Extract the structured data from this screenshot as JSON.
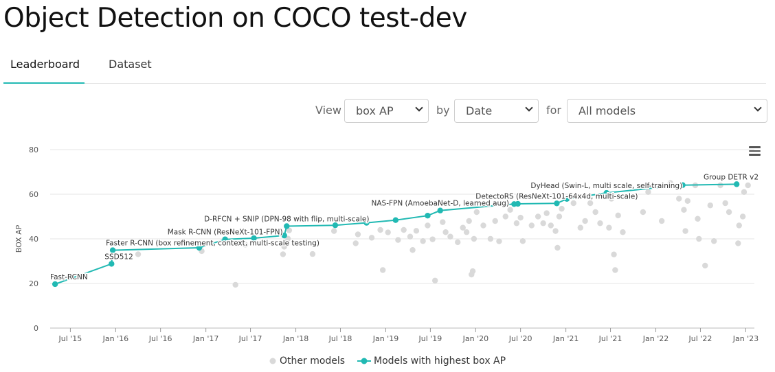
{
  "page": {
    "title": "Object Detection on COCO test-dev"
  },
  "tabs": [
    {
      "label": "Leaderboard",
      "active": true
    },
    {
      "label": "Dataset",
      "active": false
    }
  ],
  "controls": {
    "view_label": "View",
    "view_value": "box AP",
    "by_label": "by",
    "by_value": "Date",
    "for_label": "for",
    "for_value": "All models"
  },
  "colors": {
    "accent": "#21b9b3",
    "other": "#d9d9d9",
    "grid": "#e6e6e6"
  },
  "legend": {
    "other_label": "Other models",
    "best_label": "Models with highest box AP"
  },
  "chart_data": {
    "type": "scatter",
    "ylabel": "BOX AP",
    "xlabel": "",
    "ylim": [
      0,
      80
    ],
    "yticks": [
      0,
      20,
      40,
      60,
      80
    ],
    "xlim": [
      "2015-04-10",
      "2023-02-05"
    ],
    "xticks": [
      {
        "date": "2015-07-01",
        "label": "Jul '15"
      },
      {
        "date": "2016-01-01",
        "label": "Jan '16"
      },
      {
        "date": "2016-07-01",
        "label": "Jul '16"
      },
      {
        "date": "2017-01-01",
        "label": "Jan '17"
      },
      {
        "date": "2017-07-01",
        "label": "Jul '17"
      },
      {
        "date": "2018-01-01",
        "label": "Jan '18"
      },
      {
        "date": "2018-07-01",
        "label": "Jul '18"
      },
      {
        "date": "2019-01-01",
        "label": "Jan '19"
      },
      {
        "date": "2019-07-01",
        "label": "Jul '19"
      },
      {
        "date": "2020-01-01",
        "label": "Jan '20"
      },
      {
        "date": "2020-07-01",
        "label": "Jul '20"
      },
      {
        "date": "2021-01-01",
        "label": "Jan '21"
      },
      {
        "date": "2021-07-01",
        "label": "Jul '21"
      },
      {
        "date": "2022-01-01",
        "label": "Jan '22"
      },
      {
        "date": "2022-07-01",
        "label": "Jul '22"
      },
      {
        "date": "2023-01-01",
        "label": "Jan '23"
      }
    ],
    "grid": true,
    "legend_position": "bottom",
    "series": [
      {
        "name": "Models with highest box AP",
        "points": [
          {
            "date": "2015-04-30",
            "y": 19.7,
            "label": "Fast-RCNN"
          },
          {
            "date": "2015-12-15",
            "y": 28.8,
            "label": "SSD512"
          },
          {
            "date": "2015-12-20",
            "y": 34.9,
            "label": "Faster R-CNN (box refinement, context, multi-scale testing)"
          },
          {
            "date": "2016-12-05",
            "y": 36.0,
            "label": ""
          },
          {
            "date": "2017-03-20",
            "y": 39.8,
            "label": "Mask R-CNN (ResNeXt-101-FPN)"
          },
          {
            "date": "2017-07-15",
            "y": 40.3,
            "label": ""
          },
          {
            "date": "2017-11-15",
            "y": 41.5,
            "label": ""
          },
          {
            "date": "2017-11-25",
            "y": 45.7,
            "label": "D-RFCN + SNIP (DPN-98 with flip, multi-scale)"
          },
          {
            "date": "2018-06-10",
            "y": 46.1,
            "label": ""
          },
          {
            "date": "2018-10-15",
            "y": 47.2,
            "label": ""
          },
          {
            "date": "2019-02-10",
            "y": 48.4,
            "label": ""
          },
          {
            "date": "2019-06-20",
            "y": 50.4,
            "label": ""
          },
          {
            "date": "2019-08-10",
            "y": 52.7,
            "label": "NAS-FPN (AmoebaNet-D, learned aug)"
          },
          {
            "date": "2020-06-05",
            "y": 55.6,
            "label": ""
          },
          {
            "date": "2020-06-20",
            "y": 55.7,
            "label": ""
          },
          {
            "date": "2020-11-25",
            "y": 55.9,
            "label": "DetectoRS (ResNeXt-101-64x4d, multi-scale)"
          },
          {
            "date": "2021-01-05",
            "y": 57.9,
            "label": ""
          },
          {
            "date": "2021-06-15",
            "y": 60.6,
            "label": "DyHead (Swin-L, multi scale, self-training)"
          },
          {
            "date": "2022-04-20",
            "y": 64.1,
            "label": ""
          },
          {
            "date": "2022-11-25",
            "y": 64.5,
            "label": "Group DETR v2"
          }
        ]
      },
      {
        "name": "Other models",
        "points": [
          {
            "date": "2016-04-01",
            "y": 33.1
          },
          {
            "date": "2016-12-15",
            "y": 34.5
          },
          {
            "date": "2017-05-01",
            "y": 19.4
          },
          {
            "date": "2017-05-20",
            "y": 38.0
          },
          {
            "date": "2017-06-10",
            "y": 37.4
          },
          {
            "date": "2017-11-10",
            "y": 33.1
          },
          {
            "date": "2017-11-15",
            "y": 36.5
          },
          {
            "date": "2017-11-20",
            "y": 38.8
          },
          {
            "date": "2017-11-30",
            "y": 40.1
          },
          {
            "date": "2017-12-05",
            "y": 43.8
          },
          {
            "date": "2018-03-10",
            "y": 33.2
          },
          {
            "date": "2018-06-05",
            "y": 43.5
          },
          {
            "date": "2018-09-01",
            "y": 38.0
          },
          {
            "date": "2018-09-10",
            "y": 42.0
          },
          {
            "date": "2018-11-05",
            "y": 40.5
          },
          {
            "date": "2018-12-20",
            "y": 26.0
          },
          {
            "date": "2018-12-10",
            "y": 44.0
          },
          {
            "date": "2019-01-10",
            "y": 42.9
          },
          {
            "date": "2019-02-20",
            "y": 39.5
          },
          {
            "date": "2019-03-15",
            "y": 44.0
          },
          {
            "date": "2019-04-10",
            "y": 41.0
          },
          {
            "date": "2019-04-20",
            "y": 35.0
          },
          {
            "date": "2019-05-05",
            "y": 43.6
          },
          {
            "date": "2019-06-01",
            "y": 39.0
          },
          {
            "date": "2019-06-20",
            "y": 46.0
          },
          {
            "date": "2019-07-10",
            "y": 39.8
          },
          {
            "date": "2019-07-20",
            "y": 21.3
          },
          {
            "date": "2019-08-20",
            "y": 47.5
          },
          {
            "date": "2019-09-01",
            "y": 43.0
          },
          {
            "date": "2019-09-20",
            "y": 41.0
          },
          {
            "date": "2019-10-20",
            "y": 38.5
          },
          {
            "date": "2019-11-10",
            "y": 45.0
          },
          {
            "date": "2019-11-25",
            "y": 43.0
          },
          {
            "date": "2019-12-05",
            "y": 48.0
          },
          {
            "date": "2019-12-15",
            "y": 24.0
          },
          {
            "date": "2019-12-20",
            "y": 25.5
          },
          {
            "date": "2019-12-25",
            "y": 40.0
          },
          {
            "date": "2020-01-05",
            "y": 52.0
          },
          {
            "date": "2020-02-01",
            "y": 46.0
          },
          {
            "date": "2020-03-01",
            "y": 40.0
          },
          {
            "date": "2020-03-20",
            "y": 48.0
          },
          {
            "date": "2020-04-05",
            "y": 38.9
          },
          {
            "date": "2020-05-01",
            "y": 50.0
          },
          {
            "date": "2020-05-20",
            "y": 53.0
          },
          {
            "date": "2020-06-15",
            "y": 47.0
          },
          {
            "date": "2020-07-01",
            "y": 49.5
          },
          {
            "date": "2020-07-10",
            "y": 39.0
          },
          {
            "date": "2020-08-15",
            "y": 46.0
          },
          {
            "date": "2020-09-10",
            "y": 50.0
          },
          {
            "date": "2020-10-01",
            "y": 47.0
          },
          {
            "date": "2020-10-15",
            "y": 51.5
          },
          {
            "date": "2020-11-01",
            "y": 46.0
          },
          {
            "date": "2020-11-20",
            "y": 43.5
          },
          {
            "date": "2020-11-28",
            "y": 36.0
          },
          {
            "date": "2020-12-05",
            "y": 50.0
          },
          {
            "date": "2020-12-15",
            "y": 53.5
          },
          {
            "date": "2021-02-01",
            "y": 56.0
          },
          {
            "date": "2021-03-01",
            "y": 45.0
          },
          {
            "date": "2021-03-20",
            "y": 48.0
          },
          {
            "date": "2021-04-10",
            "y": 56.0
          },
          {
            "date": "2021-05-01",
            "y": 52.0
          },
          {
            "date": "2021-05-20",
            "y": 47.0
          },
          {
            "date": "2021-06-25",
            "y": 45.0
          },
          {
            "date": "2021-07-05",
            "y": 58.0
          },
          {
            "date": "2021-07-15",
            "y": 33.0
          },
          {
            "date": "2021-07-20",
            "y": 26.0
          },
          {
            "date": "2021-08-01",
            "y": 50.5
          },
          {
            "date": "2021-08-20",
            "y": 43.0
          },
          {
            "date": "2021-11-10",
            "y": 52.0
          },
          {
            "date": "2021-12-01",
            "y": 61.0
          },
          {
            "date": "2022-01-25",
            "y": 48.0
          },
          {
            "date": "2022-03-01",
            "y": 65.0
          },
          {
            "date": "2022-04-05",
            "y": 58.0
          },
          {
            "date": "2022-04-25",
            "y": 53.0
          },
          {
            "date": "2022-05-01",
            "y": 43.5
          },
          {
            "date": "2022-05-10",
            "y": 57.0
          },
          {
            "date": "2022-06-10",
            "y": 64.0
          },
          {
            "date": "2022-06-20",
            "y": 49.0
          },
          {
            "date": "2022-06-25",
            "y": 40.0
          },
          {
            "date": "2022-07-20",
            "y": 28.0
          },
          {
            "date": "2022-08-10",
            "y": 55.0
          },
          {
            "date": "2022-08-25",
            "y": 39.0
          },
          {
            "date": "2022-09-20",
            "y": 64.0
          },
          {
            "date": "2022-10-10",
            "y": 56.0
          },
          {
            "date": "2022-10-25",
            "y": 52.0
          },
          {
            "date": "2022-12-01",
            "y": 38.0
          },
          {
            "date": "2022-12-05",
            "y": 46.0
          },
          {
            "date": "2022-12-20",
            "y": 50.0
          },
          {
            "date": "2022-12-25",
            "y": 61.0
          },
          {
            "date": "2023-01-10",
            "y": 64.0
          }
        ]
      }
    ]
  }
}
